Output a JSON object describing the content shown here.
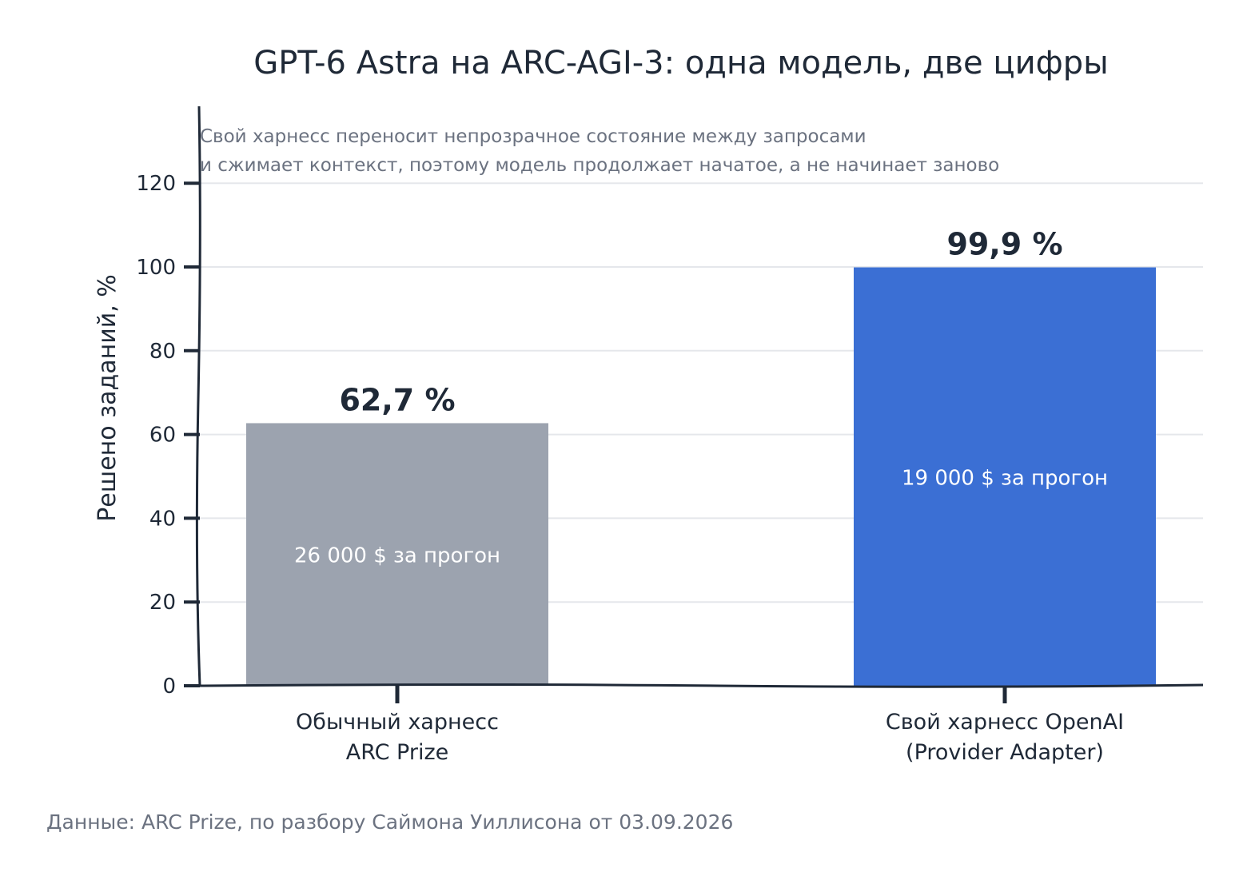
{
  "chart_data": {
    "type": "bar",
    "title": "GPT-6 Astra на ARC-AGI-3: одна модель, две цифры",
    "subtitle_lines": [
      "Свой харнесс переносит непрозрачное состояние между запросами",
      "и сжимает контекст, поэтому модель продолжает начатое, а не начинает заново"
    ],
    "ylabel": "Решено заданий, %",
    "xlabel": "",
    "ylim": [
      0,
      138
    ],
    "yticks": [
      0,
      20,
      40,
      60,
      80,
      100,
      120
    ],
    "grid": true,
    "categories": [
      [
        "Обычный харнесс",
        "ARC Prize"
      ],
      [
        "Свой харнесс OpenAI",
        "(Provider Adapter)"
      ]
    ],
    "values": [
      62.7,
      99.9
    ],
    "value_labels": [
      "62,7 %",
      "99,9 %"
    ],
    "inner_labels": [
      "26 000 $ за прогон",
      "19 000 $ за прогон"
    ],
    "colors": [
      "#9ca3af",
      "#3b6fd4"
    ],
    "source": "Данные: ARC Prize, по разбору Саймона Уиллисона от 03.09.2026"
  }
}
